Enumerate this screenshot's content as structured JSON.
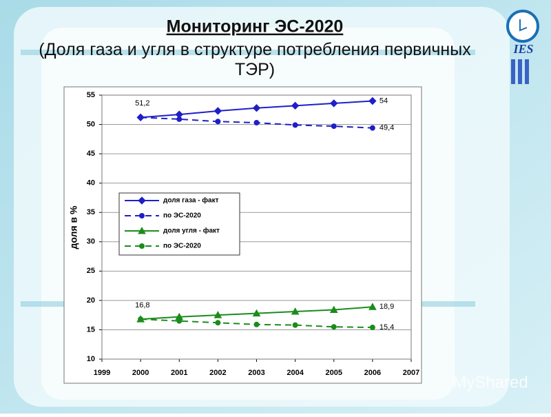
{
  "chart_data": {
    "type": "line",
    "title": "Мониторинг ЭС-2020",
    "subtitle": "(Доля газа и угля в структуре потребления первичных ТЭР)",
    "y_label": "доля в %",
    "x": [
      2000,
      2001,
      2002,
      2003,
      2004,
      2005,
      2006
    ],
    "xlim": [
      1999,
      2007
    ],
    "xticks": [
      1999,
      2000,
      2001,
      2002,
      2003,
      2004,
      2005,
      2006,
      2007
    ],
    "ylim": [
      10,
      55
    ],
    "yticks": [
      10,
      15,
      20,
      25,
      30,
      35,
      40,
      45,
      50,
      55
    ],
    "grid": true,
    "legend_loc": "center left",
    "series": [
      {
        "name": "доля газа - факт",
        "color": "#1f1fc8",
        "dashed": false,
        "marker": "diamond",
        "values": [
          51.2,
          51.7,
          52.3,
          52.8,
          53.2,
          53.6,
          54
        ],
        "value_labels": [
          "51,2",
          null,
          null,
          null,
          null,
          null,
          "54"
        ]
      },
      {
        "name": "по ЭС-2020",
        "color": "#1f1fc8",
        "dashed": true,
        "marker": "circle",
        "values": [
          51.2,
          50.9,
          50.5,
          50.3,
          49.9,
          49.7,
          49.4
        ],
        "value_labels": [
          null,
          null,
          null,
          null,
          null,
          null,
          "49,4"
        ]
      },
      {
        "name": "доля угля - факт",
        "color": "#1a8c1a",
        "dashed": false,
        "marker": "triangle",
        "values": [
          16.8,
          17.2,
          17.5,
          17.8,
          18.1,
          18.4,
          18.9
        ],
        "value_labels": [
          "16,8",
          null,
          null,
          null,
          null,
          null,
          "18,9"
        ]
      },
      {
        "name": "по ЭС-2020",
        "color": "#1a8c1a",
        "dashed": true,
        "marker": "circle",
        "values": [
          16.8,
          16.5,
          16.2,
          15.9,
          15.8,
          15.5,
          15.4
        ],
        "value_labels": [
          null,
          null,
          null,
          null,
          null,
          null,
          "15,4"
        ]
      }
    ]
  },
  "logo": "IES",
  "watermark": "MyShared"
}
